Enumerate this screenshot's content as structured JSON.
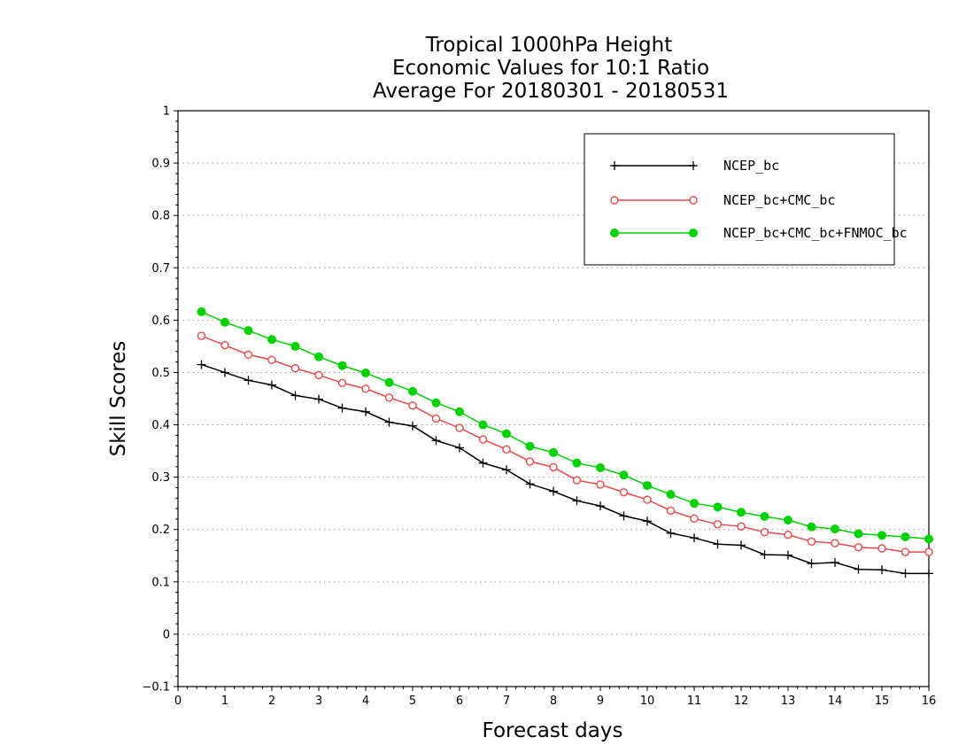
{
  "chart_data": {
    "type": "line",
    "title": [
      "Tropical 1000hPa Height",
      "Economic Values for 10:1 Ratio",
      "Average For 20180301 - 20180531"
    ],
    "xlabel": "Forecast days",
    "ylabel": "Skill Scores",
    "xlim": [
      0,
      16
    ],
    "ylim": [
      -0.1,
      1
    ],
    "xticks": [
      "0",
      "1",
      "2",
      "3",
      "4",
      "5",
      "6",
      "7",
      "8",
      "9",
      "10",
      "11",
      "12",
      "13",
      "14",
      "15",
      "16"
    ],
    "yticks": [
      "−0.1",
      "0",
      "0.1",
      "0.2",
      "0.3",
      "0.4",
      "0.5",
      "0.6",
      "0.7",
      "0.8",
      "0.9",
      "1"
    ],
    "grid": "horizontal dotted",
    "legend_position": "top-right",
    "x": [
      0.5,
      1,
      1.5,
      2,
      2.5,
      3,
      3.5,
      4,
      4.5,
      5,
      5.5,
      6,
      6.5,
      7,
      7.5,
      8,
      8.5,
      9,
      9.5,
      10,
      10.5,
      11,
      11.5,
      12,
      12.5,
      13,
      13.5,
      14,
      14.5,
      15,
      15.5,
      16
    ],
    "series": [
      {
        "name": "NCEP_bc",
        "color": "#000000",
        "marker": "plus",
        "values": [
          0.515,
          0.5,
          0.485,
          0.476,
          0.456,
          0.449,
          0.432,
          0.425,
          0.405,
          0.398,
          0.37,
          0.356,
          0.327,
          0.314,
          0.287,
          0.273,
          0.255,
          0.245,
          0.226,
          0.216,
          0.193,
          0.184,
          0.172,
          0.17,
          0.152,
          0.151,
          0.135,
          0.137,
          0.124,
          0.123,
          0.116,
          0.116
        ]
      },
      {
        "name": "NCEP_bc+CMC_bc",
        "color": "#e84a4a",
        "marker": "open-circle",
        "values": [
          0.57,
          0.552,
          0.534,
          0.524,
          0.508,
          0.495,
          0.48,
          0.469,
          0.452,
          0.437,
          0.412,
          0.394,
          0.372,
          0.353,
          0.33,
          0.319,
          0.294,
          0.286,
          0.271,
          0.257,
          0.236,
          0.221,
          0.21,
          0.206,
          0.195,
          0.19,
          0.177,
          0.174,
          0.166,
          0.164,
          0.157,
          0.157
        ]
      },
      {
        "name": "NCEP_bc+CMC_bc+FNMOC_bc",
        "color": "#00d100",
        "marker": "filled-circle",
        "values": [
          0.616,
          0.596,
          0.58,
          0.563,
          0.55,
          0.53,
          0.513,
          0.499,
          0.481,
          0.464,
          0.442,
          0.425,
          0.4,
          0.383,
          0.359,
          0.347,
          0.327,
          0.318,
          0.304,
          0.284,
          0.267,
          0.25,
          0.243,
          0.233,
          0.225,
          0.218,
          0.205,
          0.201,
          0.192,
          0.189,
          0.186,
          0.182
        ]
      }
    ]
  }
}
